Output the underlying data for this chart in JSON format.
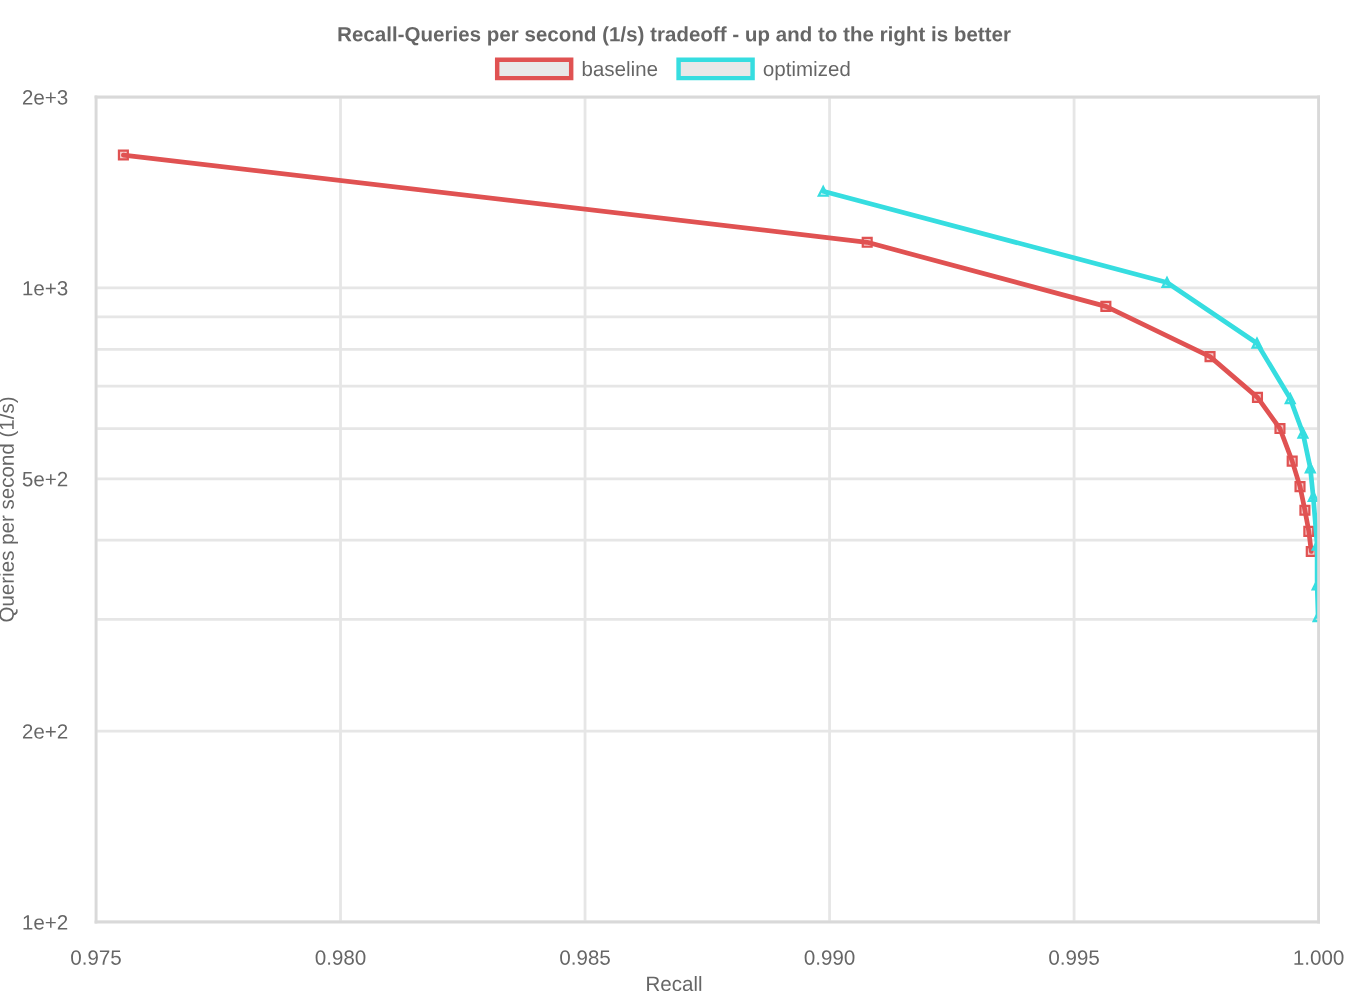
{
  "chart_data": {
    "type": "line",
    "title": "Recall-Queries per second (1/s) tradeoff - up and to the right is better",
    "xlabel": "Recall",
    "ylabel": "Queries per second (1/s)",
    "series": [
      {
        "name": "baseline",
        "color": "#e05252",
        "marker": "square",
        "x": [
          0.97556,
          0.99077,
          0.99565,
          0.99778,
          0.99875,
          0.99921,
          0.99946,
          0.99962,
          0.99972,
          0.9998,
          0.99985
        ],
        "values": [
          1620,
          1180,
          935,
          779,
          672,
          600,
          533,
          486,
          446,
          413,
          384
        ]
      },
      {
        "name": "optimized",
        "color": "#36dde0",
        "marker": "triangle",
        "x": [
          0.98987,
          0.9969,
          0.99874,
          0.99942,
          0.99968,
          0.99983,
          0.99989,
          0.99997,
          0.99997,
          0.99999
        ],
        "values": [
          1420,
          1020,
          818,
          669,
          590,
          520,
          469,
          393,
          340,
          303
        ]
      }
    ],
    "xlim": [
      0.975,
      1.0
    ],
    "xticks": [
      0.975,
      {
        "value": 0.98,
        "label": "0.980"
      },
      0.985,
      {
        "value": 0.99,
        "label": "0.990"
      },
      0.995,
      {
        "value": 1.0,
        "label": "1.000"
      }
    ],
    "log": "y",
    "ylim": [
      100,
      2000
    ],
    "yticks": [
      {
        "value": 100,
        "label": "1e+2"
      },
      {
        "value": 200,
        "label": "2e+2"
      },
      {
        "value": 300,
        "label": null
      },
      {
        "value": 400,
        "label": null
      },
      {
        "value": 500,
        "label": "5e+2"
      },
      {
        "value": 600,
        "label": null
      },
      {
        "value": 700,
        "label": null
      },
      {
        "value": 800,
        "label": null
      },
      {
        "value": 900,
        "label": null
      },
      {
        "value": 1000,
        "label": "1e+3"
      },
      {
        "value": 2000,
        "label": "2e+3"
      }
    ],
    "grid": true,
    "legend": "top",
    "line_style": "solid"
  }
}
